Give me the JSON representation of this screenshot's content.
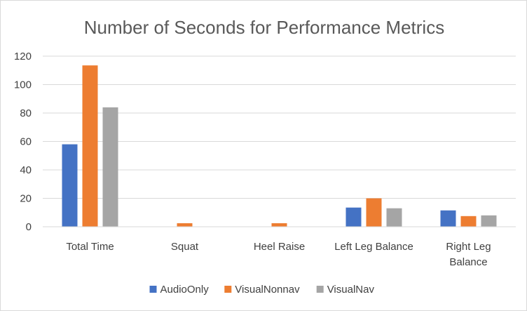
{
  "chart_data": {
    "type": "bar",
    "title": "Number of Seconds for Performance Metrics",
    "xlabel": "",
    "ylabel": "",
    "ylim": [
      0,
      120
    ],
    "yticks": [
      0,
      20,
      40,
      60,
      80,
      100,
      120
    ],
    "grid": true,
    "legend_position": "bottom",
    "categories": [
      [
        "Total Time"
      ],
      [
        "Squat"
      ],
      [
        "Heel Raise"
      ],
      [
        "Left Leg Balance"
      ],
      [
        "Right Leg",
        "Balance"
      ]
    ],
    "series": [
      {
        "name": "AudioOnly",
        "color": "#4472C4",
        "values": [
          58,
          0,
          0,
          13.5,
          11.5
        ]
      },
      {
        "name": "VisualNonnav",
        "color": "#ED7D31",
        "values": [
          113.5,
          2.5,
          2.5,
          20,
          7.5
        ]
      },
      {
        "name": "VisualNav",
        "color": "#A5A5A5",
        "values": [
          84,
          0,
          0,
          13,
          8
        ]
      }
    ]
  }
}
